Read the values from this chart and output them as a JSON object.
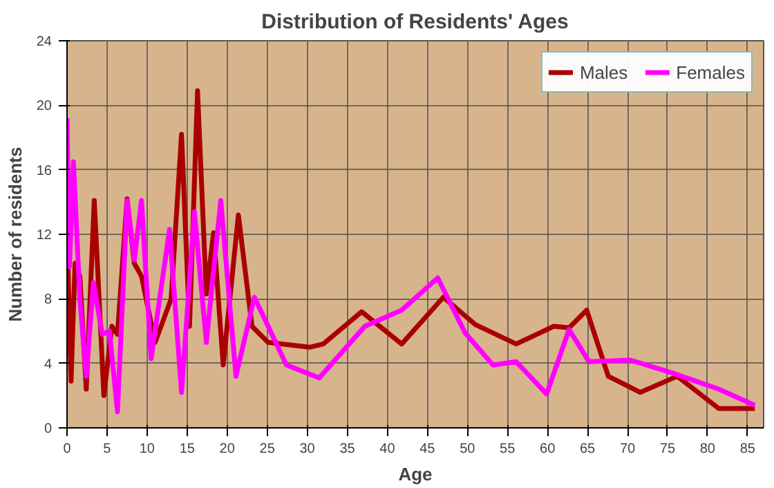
{
  "chart_data": {
    "type": "line",
    "title": "Distribution of Residents' Ages",
    "xlabel": "Age",
    "ylabel": "Number of residents",
    "xlim": [
      0,
      87
    ],
    "ylim": [
      0,
      24
    ],
    "xticks": [
      0,
      5,
      10,
      15,
      20,
      25,
      30,
      35,
      40,
      45,
      50,
      55,
      60,
      65,
      70,
      75,
      80,
      85
    ],
    "yticks": [
      0,
      4,
      8,
      12,
      16,
      20,
      24
    ],
    "grid": true,
    "legend": "top right",
    "line_style": "solid",
    "series": [
      {
        "name": "Males",
        "color": "#aa0000",
        "x": [
          0.1,
          0.5,
          1,
          1.6,
          2.4,
          3.4,
          4.6,
          5.6,
          6.3,
          7.5,
          8.4,
          9.3,
          11,
          13,
          14.3,
          15.3,
          16.3,
          17.4,
          18.3,
          19.5,
          21.4,
          23.1,
          25.1,
          26.9,
          30.3,
          32,
          36.8,
          41.8,
          47,
          51,
          56.1,
          60.8,
          62.7,
          64.9,
          67.6,
          71.6,
          76.2,
          81.4,
          85.9
        ],
        "values": [
          10.4,
          2.9,
          10.2,
          9.4,
          2.4,
          14.1,
          2.0,
          6.3,
          5.8,
          14.2,
          10.2,
          9.4,
          5.3,
          8.0,
          18.2,
          6.3,
          20.9,
          8.3,
          12.1,
          3.9,
          13.2,
          6.3,
          5.3,
          5.2,
          5.0,
          5.2,
          7.2,
          5.2,
          8.1,
          6.4,
          5.2,
          6.3,
          6.2,
          7.3,
          3.2,
          2.2,
          3.2,
          1.2,
          1.2
        ]
      },
      {
        "name": "Females",
        "color": "#ff00ff",
        "x": [
          0,
          0.3,
          0.8,
          1.6,
          2.4,
          3.3,
          4.4,
          5.3,
          6.3,
          7.5,
          8.4,
          9.3,
          10.5,
          12.8,
          14.3,
          15.9,
          17.4,
          19.2,
          21.1,
          23.4,
          27.4,
          31.5,
          37.2,
          41.8,
          46.3,
          49.7,
          53.2,
          56.1,
          59.9,
          62.7,
          65.2,
          70.4,
          75.6,
          81.4,
          85.9
        ],
        "values": [
          19.2,
          10,
          16.5,
          8,
          3.2,
          9,
          5.8,
          6,
          1.0,
          14.1,
          10.4,
          14.1,
          4.3,
          12.3,
          2.2,
          13.4,
          5.3,
          14.1,
          3.2,
          8.1,
          3.9,
          3.1,
          6.3,
          7.3,
          9.3,
          5.9,
          3.9,
          4.1,
          2.1,
          6.1,
          4.1,
          4.2,
          3.4,
          2.4,
          1.4
        ]
      }
    ]
  }
}
